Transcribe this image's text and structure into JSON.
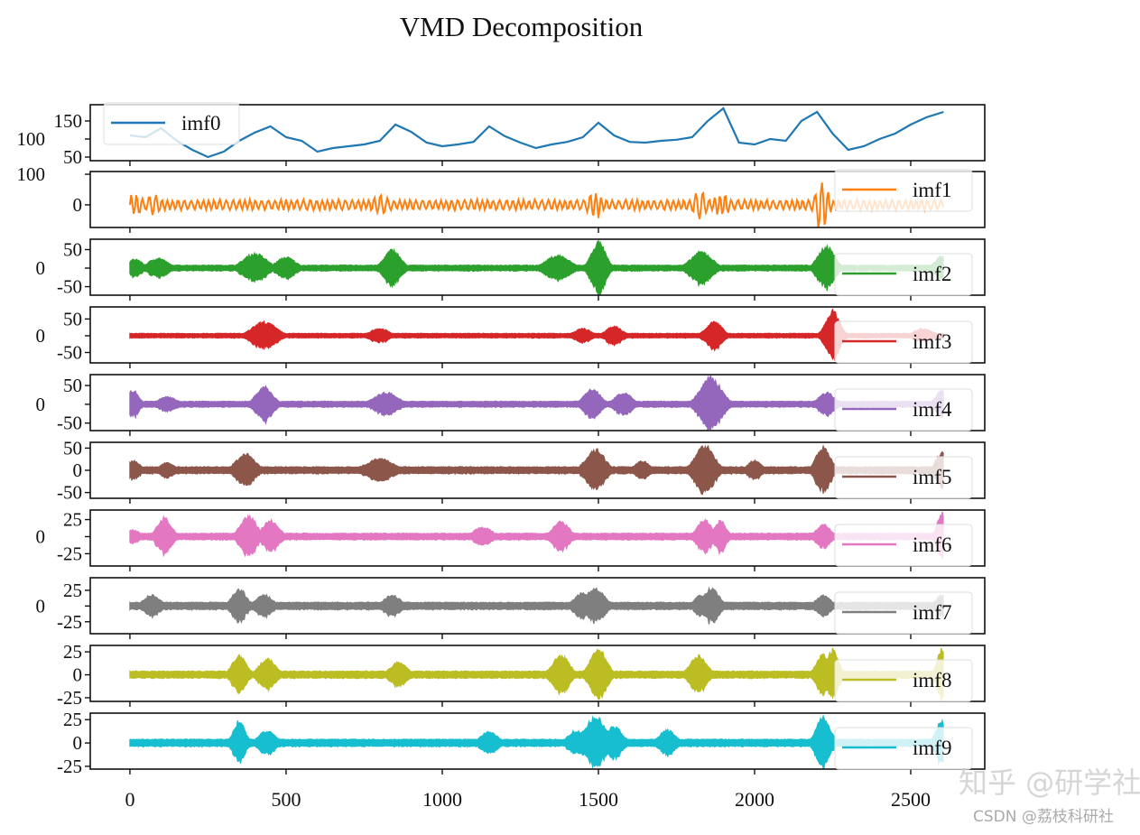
{
  "chart_data": {
    "type": "line",
    "title": "VMD Decomposition",
    "xlim": [
      -127,
      2737
    ],
    "xticks": [
      0,
      500,
      1000,
      1500,
      2000,
      2500
    ],
    "x_range": [
      0,
      2605
    ],
    "grid": false,
    "subplots": [
      {
        "name": "imf0",
        "color": "#1f77b4",
        "legend": "upper-left",
        "ylim": [
          40,
          195
        ],
        "yticks": [
          50,
          100,
          150
        ],
        "x": [
          0,
          50,
          100,
          150,
          200,
          250,
          300,
          350,
          400,
          450,
          500,
          550,
          600,
          650,
          700,
          750,
          800,
          850,
          900,
          950,
          1000,
          1050,
          1100,
          1150,
          1200,
          1250,
          1300,
          1350,
          1400,
          1450,
          1500,
          1550,
          1600,
          1650,
          1700,
          1750,
          1800,
          1850,
          1900,
          1950,
          2000,
          2050,
          2100,
          2150,
          2200,
          2250,
          2300,
          2350,
          2400,
          2450,
          2500,
          2550,
          2605
        ],
        "y": [
          110,
          105,
          130,
          95,
          70,
          50,
          65,
          95,
          118,
          135,
          105,
          95,
          65,
          75,
          80,
          85,
          95,
          140,
          120,
          90,
          80,
          85,
          92,
          135,
          108,
          90,
          75,
          85,
          92,
          105,
          145,
          110,
          92,
          90,
          95,
          98,
          105,
          150,
          185,
          90,
          85,
          100,
          95,
          150,
          175,
          115,
          70,
          80,
          100,
          115,
          140,
          160,
          175
        ]
      },
      {
        "name": "imf1",
        "color": "#ff7f0e",
        "legend": "right",
        "ylim": [
          -74,
          109
        ],
        "yticks": [
          0,
          100
        ],
        "style": "wave",
        "base_amplitude": 18,
        "bursts": [
          [
            17,
            40,
            30
          ],
          [
            75,
            38,
            30
          ],
          [
            800,
            35,
            40
          ],
          [
            1490,
            50,
            30
          ],
          [
            1825,
            50,
            30
          ],
          [
            1895,
            45,
            30
          ],
          [
            2215,
            95,
            25
          ]
        ]
      },
      {
        "name": "imf2",
        "color": "#2ca02c",
        "legend": "right",
        "ylim": [
          -73,
          78
        ],
        "yticks": [
          -50,
          0,
          50
        ],
        "base_amplitude": 8,
        "bursts": [
          [
            17,
            25,
            30
          ],
          [
            90,
            28,
            40
          ],
          [
            400,
            40,
            50
          ],
          [
            500,
            30,
            40
          ],
          [
            840,
            50,
            35
          ],
          [
            1370,
            35,
            50
          ],
          [
            1500,
            72,
            30
          ],
          [
            1830,
            45,
            45
          ],
          [
            2230,
            60,
            35
          ],
          [
            2600,
            32,
            30
          ]
        ]
      },
      {
        "name": "imf3",
        "color": "#d62728",
        "legend": "right",
        "ylim": [
          -81,
          86
        ],
        "yticks": [
          -50,
          0,
          50
        ],
        "base_amplitude": 7,
        "bursts": [
          [
            430,
            42,
            50
          ],
          [
            800,
            22,
            40
          ],
          [
            1450,
            22,
            35
          ],
          [
            1550,
            28,
            35
          ],
          [
            1870,
            42,
            35
          ],
          [
            2250,
            75,
            30
          ],
          [
            2540,
            22,
            40
          ]
        ]
      },
      {
        "name": "imf4",
        "color": "#9467bd",
        "legend": "right",
        "ylim": [
          -70,
          79
        ],
        "yticks": [
          -50,
          0,
          50
        ],
        "base_amplitude": 8,
        "bursts": [
          [
            10,
            38,
            25
          ],
          [
            120,
            20,
            40
          ],
          [
            430,
            48,
            35
          ],
          [
            820,
            32,
            50
          ],
          [
            1480,
            42,
            35
          ],
          [
            1580,
            32,
            35
          ],
          [
            1860,
            72,
            45
          ],
          [
            2230,
            32,
            35
          ],
          [
            2600,
            38,
            25
          ]
        ]
      },
      {
        "name": "imf5",
        "color": "#8c564b",
        "legend": "right",
        "ylim": [
          -63,
          63
        ],
        "yticks": [
          -50,
          0,
          50
        ],
        "base_amplitude": 8,
        "bursts": [
          [
            10,
            22,
            30
          ],
          [
            120,
            18,
            30
          ],
          [
            370,
            38,
            40
          ],
          [
            800,
            26,
            60
          ],
          [
            1490,
            48,
            40
          ],
          [
            1640,
            22,
            30
          ],
          [
            1840,
            58,
            40
          ],
          [
            2000,
            22,
            30
          ],
          [
            2220,
            55,
            30
          ],
          [
            2600,
            42,
            25
          ]
        ]
      },
      {
        "name": "imf6",
        "color": "#e377c2",
        "legend": "right",
        "ylim": [
          -43,
          39
        ],
        "yticks": [
          -25,
          0,
          25
        ],
        "base_amplitude": 5,
        "bursts": [
          [
            10,
            10,
            30
          ],
          [
            110,
            28,
            30
          ],
          [
            380,
            30,
            35
          ],
          [
            450,
            24,
            35
          ],
          [
            1130,
            14,
            40
          ],
          [
            1380,
            22,
            35
          ],
          [
            1840,
            25,
            30
          ],
          [
            1890,
            24,
            25
          ],
          [
            2220,
            18,
            30
          ],
          [
            2600,
            35,
            20
          ]
        ]
      },
      {
        "name": "imf7",
        "color": "#7f7f7f",
        "legend": "right",
        "ylim": [
          -44,
          45
        ],
        "yticks": [
          -25,
          0,
          25
        ],
        "base_amplitude": 6,
        "bursts": [
          [
            70,
            18,
            35
          ],
          [
            350,
            28,
            30
          ],
          [
            430,
            18,
            35
          ],
          [
            840,
            18,
            35
          ],
          [
            1450,
            22,
            35
          ],
          [
            1490,
            28,
            40
          ],
          [
            1830,
            18,
            30
          ],
          [
            1860,
            28,
            35
          ],
          [
            2220,
            18,
            30
          ],
          [
            2600,
            18,
            25
          ]
        ]
      },
      {
        "name": "imf8",
        "color": "#bcbd22",
        "legend": "right",
        "ylim": [
          -29,
          32
        ],
        "yticks": [
          -25,
          0,
          25
        ],
        "base_amplitude": 4,
        "bursts": [
          [
            350,
            22,
            30
          ],
          [
            440,
            18,
            35
          ],
          [
            860,
            14,
            35
          ],
          [
            1380,
            22,
            35
          ],
          [
            1500,
            28,
            35
          ],
          [
            1820,
            22,
            35
          ],
          [
            2220,
            22,
            30
          ],
          [
            2250,
            28,
            25
          ],
          [
            2600,
            28,
            20
          ]
        ]
      },
      {
        "name": "imf9",
        "color": "#17becf",
        "legend": "right",
        "ylim": [
          -28,
          32
        ],
        "yticks": [
          -25,
          0,
          25
        ],
        "base_amplitude": 4,
        "bursts": [
          [
            350,
            24,
            25
          ],
          [
            440,
            14,
            35
          ],
          [
            1150,
            13,
            35
          ],
          [
            1430,
            14,
            35
          ],
          [
            1490,
            28,
            45
          ],
          [
            1550,
            18,
            35
          ],
          [
            1720,
            14,
            35
          ],
          [
            2220,
            28,
            30
          ],
          [
            2600,
            24,
            25
          ]
        ]
      }
    ]
  },
  "watermark": {
    "zhihu": "知乎 @研学社",
    "csdn": "CSDN @荔枝科研社"
  }
}
